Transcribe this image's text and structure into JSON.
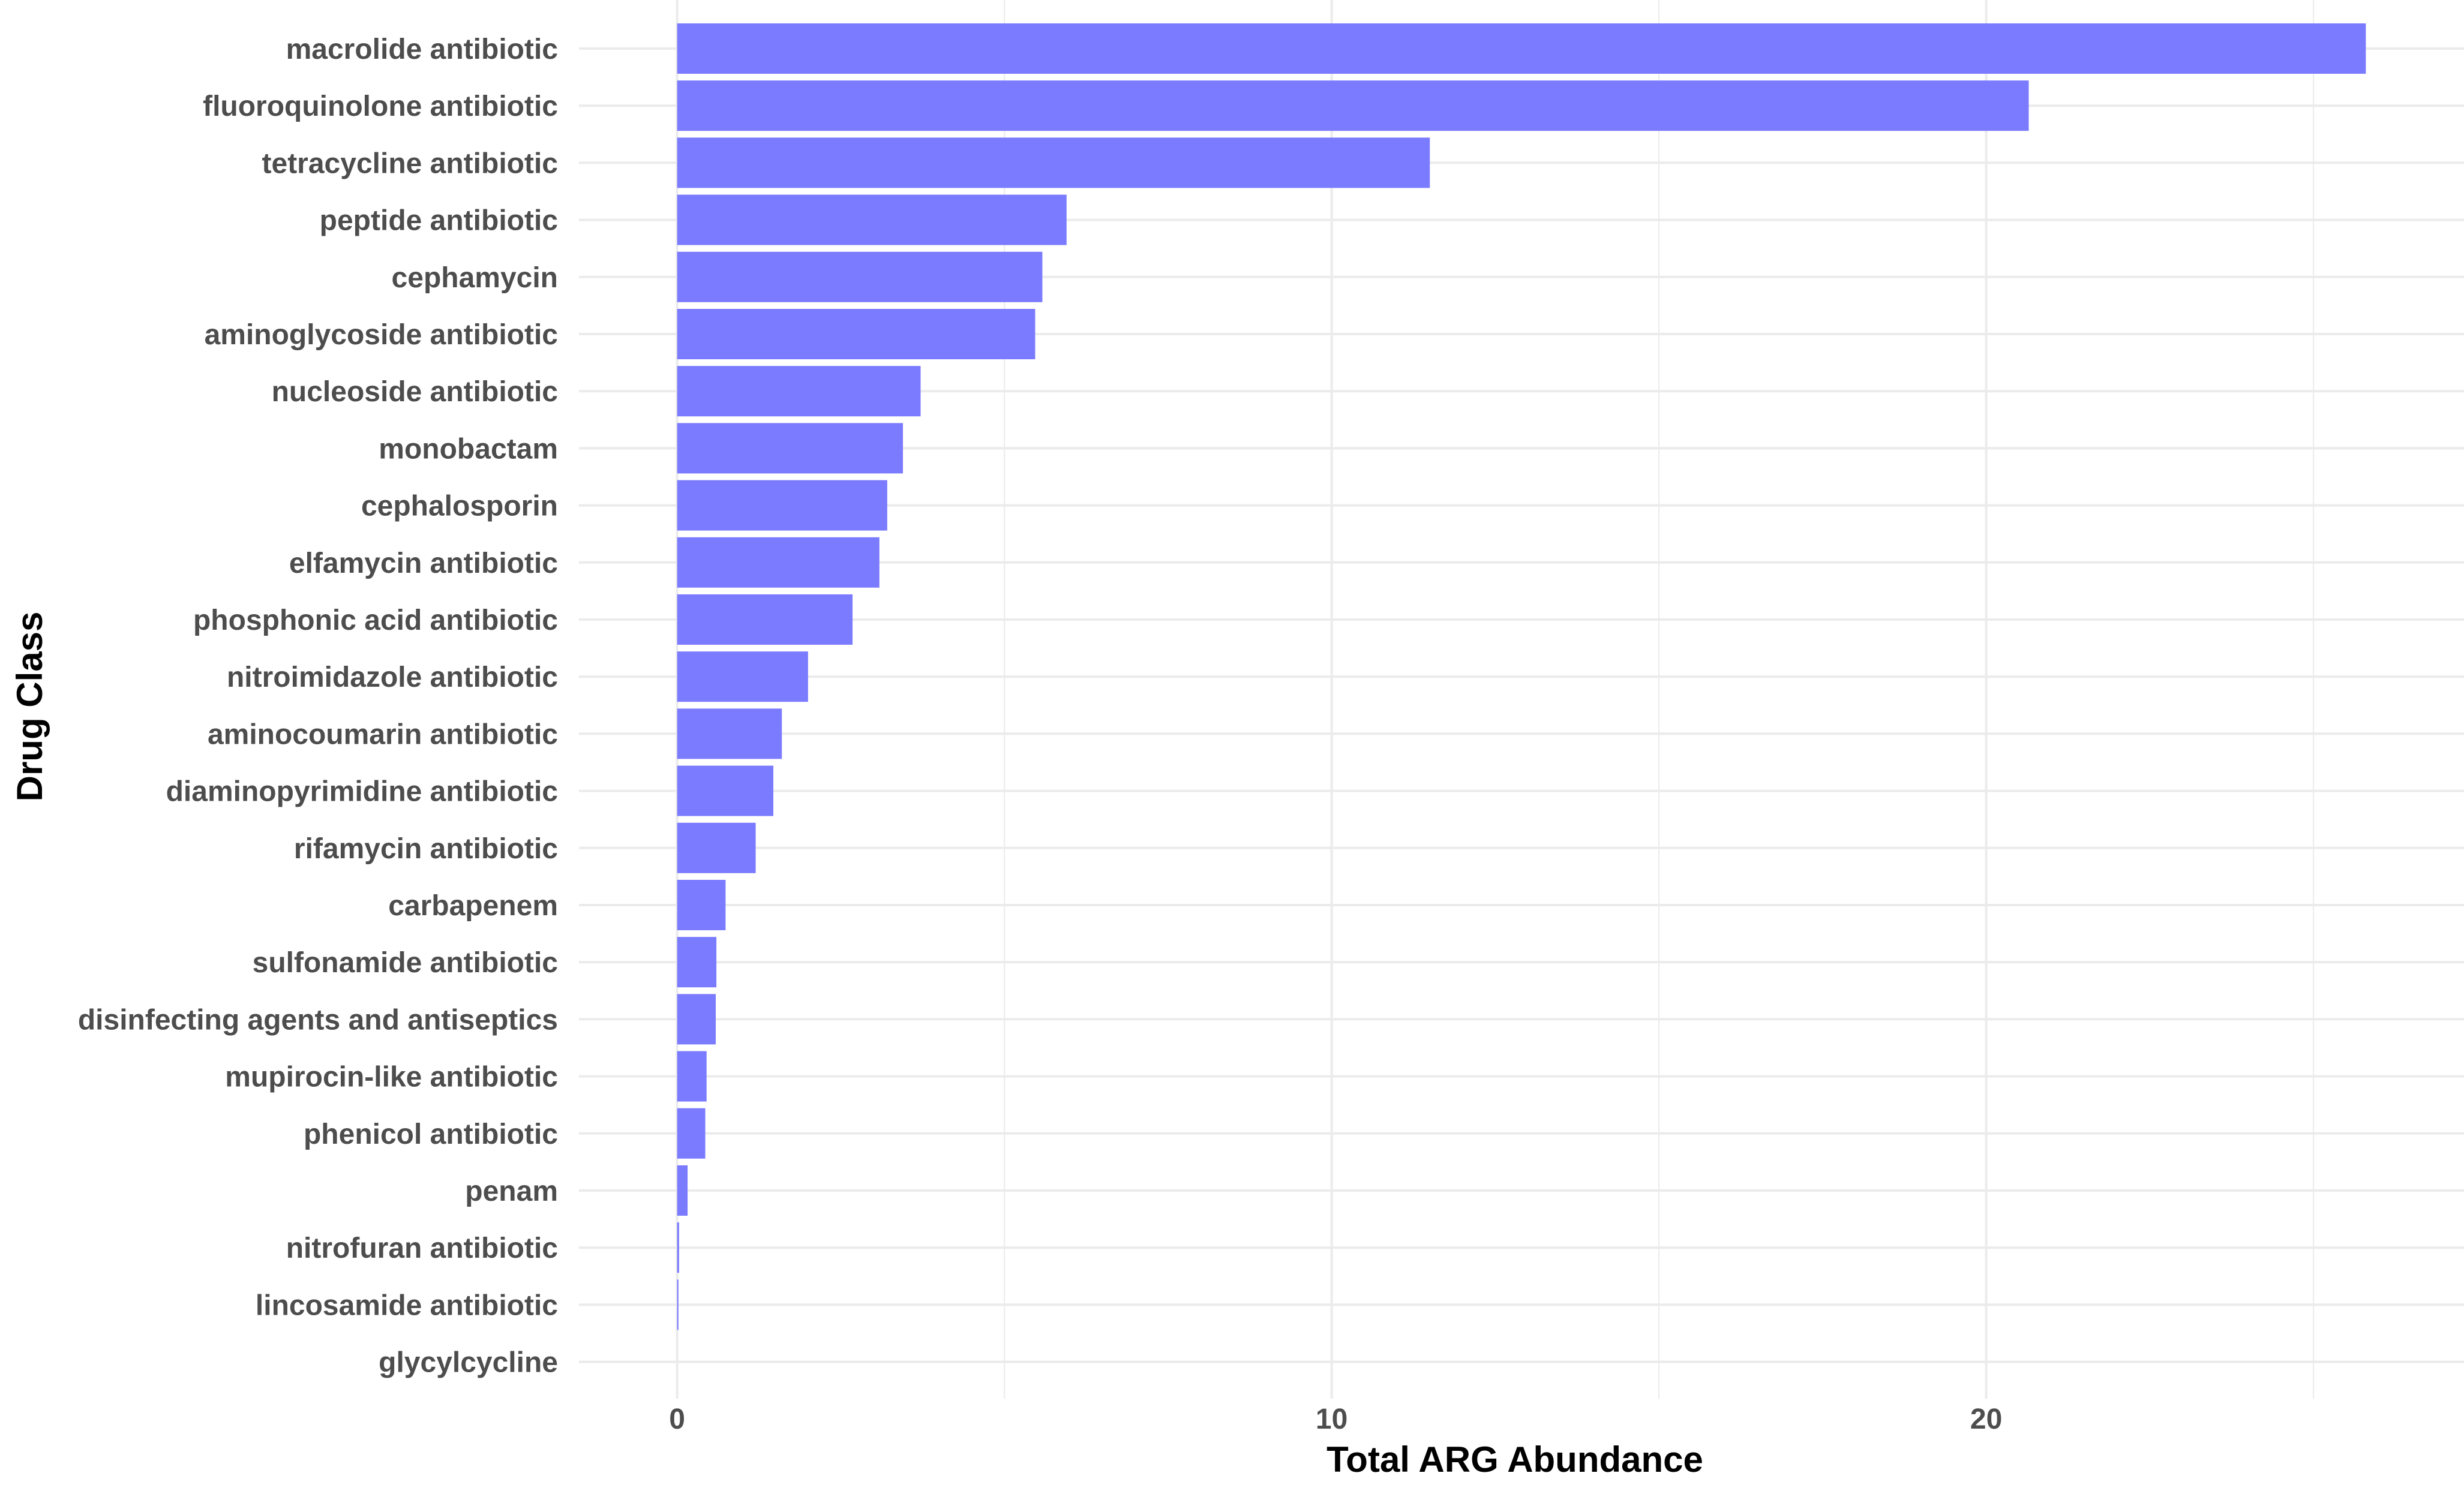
{
  "chart_data": {
    "type": "bar",
    "orientation": "horizontal",
    "title": "",
    "xlabel": "Total ARG Abundance",
    "ylabel": "Drug Class",
    "categories": [
      "macrolide antibiotic",
      "fluoroquinolone antibiotic",
      "tetracycline antibiotic",
      "peptide antibiotic",
      "cephamycin",
      "aminoglycoside antibiotic",
      "nucleoside antibiotic",
      "monobactam",
      "cephalosporin",
      "elfamycin antibiotic",
      "phosphonic acid antibiotic",
      "nitroimidazole antibiotic",
      "aminocoumarin antibiotic",
      "diaminopyrimidine antibiotic",
      "rifamycin antibiotic",
      "carbapenem",
      "sulfonamide antibiotic",
      "disinfecting agents and antiseptics",
      "mupirocin-like antibiotic",
      "phenicol antibiotic",
      "penam",
      "nitrofuran antibiotic",
      "lincosamide antibiotic",
      "glycylcycline"
    ],
    "values": [
      25.8,
      20.65,
      11.5,
      5.95,
      5.58,
      5.47,
      3.72,
      3.45,
      3.21,
      3.09,
      2.68,
      2.0,
      1.6,
      1.47,
      1.2,
      0.74,
      0.6,
      0.59,
      0.45,
      0.43,
      0.16,
      0.03,
      0.02,
      0.0
    ],
    "xlim": [
      -1.5,
      27.3
    ],
    "xticks": [
      0,
      10,
      20
    ],
    "xtick_labels": [
      "0",
      "10",
      "20"
    ],
    "grid": true,
    "legend": "none",
    "bar_color": "#7b7bff",
    "grid_color": "#ebebeb"
  }
}
